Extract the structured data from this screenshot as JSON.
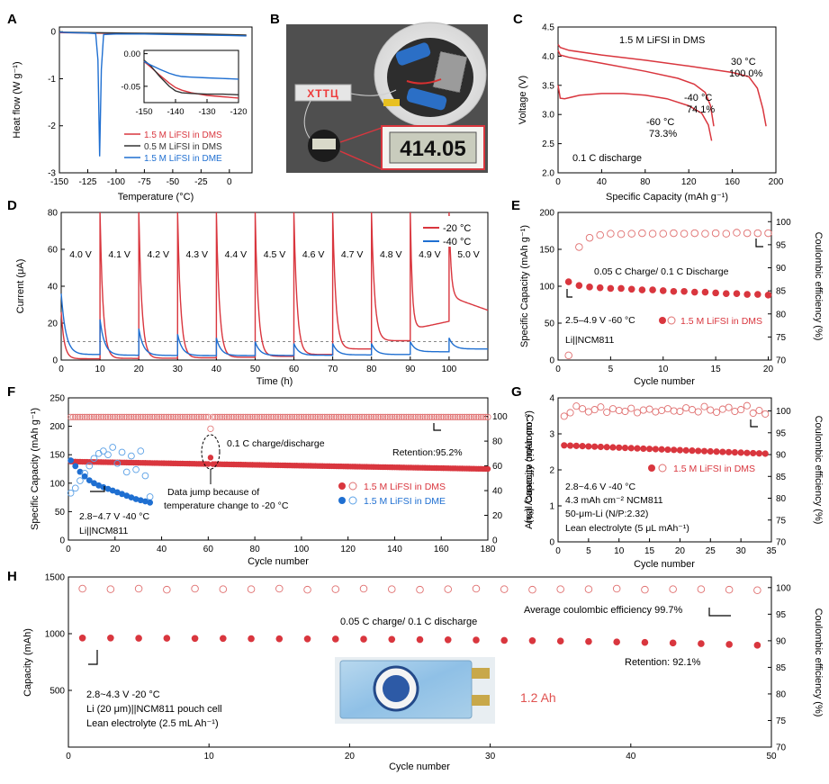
{
  "colors": {
    "red": "#d9363e",
    "blue": "#1f6fd1",
    "black": "#333333",
    "dark": "#1a1a1a",
    "pinkText": "#e0514f"
  },
  "panels": {
    "A": {
      "letter": "A",
      "chart_data": {
        "type": "line",
        "xlabel": "Temperature (°C)",
        "ylabel": "Heat flow (W g⁻¹)",
        "xlim": [
          -150,
          20
        ],
        "ylim": [
          -3,
          0.1
        ],
        "xticks": [
          -150,
          -125,
          -100,
          -75,
          -50,
          -25,
          0
        ],
        "yticks": [
          -3,
          -2,
          -1,
          0
        ],
        "series": [
          {
            "name": "1.5 M LiFSI in DMS",
            "color": "#d9363e",
            "x": [
              -150,
              -120,
              -90,
              -60,
              -30,
              0,
              15
            ],
            "y": [
              -0.02,
              -0.03,
              -0.035,
              -0.04,
              -0.05,
              -0.07,
              -0.08
            ]
          },
          {
            "name": "0.5 M LiFSI in DMS",
            "color": "#333333",
            "x": [
              -150,
              -120,
              -90,
              -60,
              -30,
              0,
              15
            ],
            "y": [
              -0.01,
              -0.02,
              -0.03,
              -0.035,
              -0.045,
              -0.06,
              -0.07
            ]
          },
          {
            "name": "1.5 M LiFSI in DME",
            "color": "#1f6fd1",
            "x": [
              -150,
              -140,
              -125,
              -118,
              -116,
              -114.5,
              -113,
              -111,
              -100,
              -75,
              -50,
              -25,
              0,
              15
            ],
            "y": [
              -0.01,
              -0.02,
              -0.03,
              -0.04,
              -0.6,
              -2.65,
              -0.8,
              -0.06,
              -0.05,
              -0.05,
              -0.06,
              -0.07,
              -0.08,
              -0.09
            ]
          }
        ],
        "inset": {
          "xlim": [
            -150,
            -120
          ],
          "ylim": [
            -0.075,
            0.005
          ],
          "xticks": [
            -150,
            -140,
            -130,
            -120
          ],
          "yticks": [
            0.0,
            -0.05
          ],
          "yticklabels": [
            "0.00",
            "-0.05"
          ],
          "series": [
            {
              "color": "#d9363e",
              "x": [
                -150,
                -148,
                -145,
                -142,
                -140,
                -138,
                -135,
                -130,
                -125,
                -120
              ],
              "y": [
                -0.012,
                -0.02,
                -0.033,
                -0.045,
                -0.052,
                -0.056,
                -0.06,
                -0.064,
                -0.066,
                -0.068
              ]
            },
            {
              "color": "#333333",
              "x": [
                -150,
                -148,
                -145,
                -142,
                -140,
                -138,
                -135,
                -130,
                -125,
                -120
              ],
              "y": [
                -0.01,
                -0.018,
                -0.035,
                -0.05,
                -0.057,
                -0.06,
                -0.061,
                -0.062,
                -0.062,
                -0.063
              ]
            },
            {
              "color": "#1f6fd1",
              "x": [
                -150,
                -148,
                -145,
                -142,
                -140,
                -138,
                -135,
                -130,
                -125,
                -120
              ],
              "y": [
                -0.012,
                -0.017,
                -0.024,
                -0.03,
                -0.033,
                -0.035,
                -0.036,
                -0.037,
                -0.038,
                -0.039
              ]
            }
          ]
        }
      }
    },
    "B": {
      "letter": "B",
      "display_text": "414.05",
      "led_text": "ХТТЦ"
    },
    "C": {
      "letter": "C",
      "chart_data": {
        "type": "line",
        "title": "1.5 M LiFSI in DMS",
        "xlabel": "Specific Capacity (mAh g⁻¹)",
        "ylabel": "Voltage (V)",
        "xlim": [
          0,
          200
        ],
        "ylim": [
          2.0,
          4.5
        ],
        "xticks": [
          0,
          40,
          80,
          120,
          160,
          200
        ],
        "yticks": [
          2.0,
          2.5,
          3.0,
          3.5,
          4.0,
          4.5
        ],
        "yticklabels": [
          "2.0",
          "2.5",
          "3.0",
          "3.5",
          "4.0",
          "4.5"
        ],
        "note": "0.1 C discharge",
        "series": [
          {
            "name": "30 °C",
            "label2": "100.0%",
            "color": "#d9363e",
            "x": [
              0,
              2,
              10,
              40,
              80,
              120,
              160,
              175,
              183,
              188,
              191
            ],
            "y": [
              4.2,
              4.15,
              4.1,
              4.02,
              3.93,
              3.83,
              3.72,
              3.65,
              3.45,
              3.1,
              2.8
            ]
          },
          {
            "name": "-40 °C",
            "label2": "74.1%",
            "color": "#d9363e",
            "x": [
              0,
              2,
              10,
              40,
              80,
              110,
              125,
              135,
              140,
              143
            ],
            "y": [
              4.1,
              4.02,
              3.98,
              3.88,
              3.74,
              3.62,
              3.52,
              3.38,
              3.15,
              2.8
            ]
          },
          {
            "name": "-60 °C",
            "label2": "73.3%",
            "color": "#d9363e",
            "x": [
              0,
              2,
              6,
              20,
              40,
              60,
              80,
              100,
              120,
              132,
              138,
              141
            ],
            "y": [
              3.5,
              3.28,
              3.27,
              3.33,
              3.36,
              3.36,
              3.33,
              3.27,
              3.15,
              3.02,
              2.82,
              2.55
            ]
          }
        ]
      }
    },
    "D": {
      "letter": "D",
      "chart_data": {
        "type": "line",
        "xlabel": "Time (h)",
        "ylabel": "Current (μA)",
        "xlim": [
          0,
          110
        ],
        "ylim": [
          0,
          80
        ],
        "xticks": [
          0,
          10,
          20,
          30,
          40,
          50,
          60,
          70,
          80,
          90,
          100
        ],
        "yticks": [
          0,
          20,
          40,
          60,
          80
        ],
        "step_labels": [
          "4.0 V",
          "4.1 V",
          "4.2 V",
          "4.3 V",
          "4.4 V",
          "4.5 V",
          "4.6 V",
          "4.7 V",
          "4.8 V",
          "4.9 V",
          "5.0 V"
        ],
        "reference_line": 10,
        "series": [
          {
            "name": "-20 °C",
            "color": "#d9363e",
            "steps": [
              {
                "peak": 26,
                "tail": 0.7
              },
              {
                "peak": 80,
                "tail": 0.9
              },
              {
                "peak": 80,
                "tail": 1.0
              },
              {
                "peak": 80,
                "tail": 1.2
              },
              {
                "peak": 80,
                "tail": 1.5
              },
              {
                "peak": 80,
                "tail": 2.0
              },
              {
                "peak": 80,
                "tail": 3.0
              },
              {
                "peak": 80,
                "tail": 6.0
              },
              {
                "peak": 80,
                "tail": 10.5
              },
              {
                "peak": 80,
                "tail": 21.0,
                "min": 16.5
              },
              {
                "peak": 80,
                "tail": 27.0,
                "min": 34.5
              }
            ]
          },
          {
            "name": "-40 °C",
            "color": "#1f6fd1",
            "steps": [
              {
                "peak": 36,
                "tail": 3.0
              },
              {
                "peak": 22,
                "tail": 2.6
              },
              {
                "peak": 17,
                "tail": 2.5
              },
              {
                "peak": 14,
                "tail": 2.4
              },
              {
                "peak": 12,
                "tail": 2.4
              },
              {
                "peak": 10,
                "tail": 2.5
              },
              {
                "peak": 9,
                "tail": 2.6
              },
              {
                "peak": 9,
                "tail": 2.8
              },
              {
                "peak": 9,
                "tail": 3.0
              },
              {
                "peak": 10,
                "tail": 4.5
              },
              {
                "peak": 12,
                "tail": 6.0
              }
            ]
          }
        ]
      }
    },
    "E": {
      "letter": "E",
      "chart_data": {
        "type": "scatter",
        "xlabel": "Cycle number",
        "ylabel": "Specific Capacity (mAh g⁻¹)",
        "y2label": "Coulombic efficiency (%)",
        "xlim": [
          0,
          20.3
        ],
        "ylim": [
          0,
          200
        ],
        "y2lim": [
          70,
          102
        ],
        "xticks": [
          0,
          5,
          10,
          15,
          20
        ],
        "yticks": [
          0,
          50,
          100,
          150,
          200
        ],
        "y2ticks": [
          70,
          75,
          80,
          85,
          90,
          95,
          100
        ],
        "legend": "1.5 M LiFSI in DMS",
        "notes": [
          "0.05 C Charge/ 0.1 C Discharge",
          "2.5–4.9 V -60 °C",
          "Li||NCM811"
        ],
        "x": [
          1,
          2,
          3,
          4,
          5,
          6,
          7,
          8,
          9,
          10,
          11,
          12,
          13,
          14,
          15,
          16,
          17,
          18,
          19,
          20
        ],
        "capacity": [
          106,
          101,
          99,
          98,
          97,
          97,
          96,
          95,
          95,
          94,
          93,
          93,
          92,
          92,
          91,
          90,
          90,
          89,
          89,
          88
        ],
        "ce": [
          71,
          94.5,
          96.5,
          97.1,
          97.4,
          97.3,
          97.4,
          97.5,
          97.4,
          97.4,
          97.5,
          97.4,
          97.5,
          97.4,
          97.5,
          97.4,
          97.6,
          97.5,
          97.5,
          97.5
        ]
      }
    },
    "F": {
      "letter": "F",
      "chart_data": {
        "type": "scatter",
        "xlabel": "Cycle number",
        "ylabel": "Specific Capacity (mAh g⁻¹)",
        "y2label": "Coulombic efficiency (%)",
        "xlim": [
          0,
          180
        ],
        "ylim": [
          0,
          250
        ],
        "y2lim": [
          0,
          115
        ],
        "xticks": [
          0,
          20,
          40,
          60,
          80,
          100,
          120,
          140,
          160,
          180
        ],
        "yticks": [
          0,
          50,
          100,
          150,
          200,
          250
        ],
        "y2ticks": [
          0,
          20,
          40,
          60,
          80,
          100
        ],
        "notes": [
          "0.1 C charge/discharge",
          "Retention:95.2%",
          "2.8~4.7 V    -40 °C",
          "Li||NCM811",
          "Data jump because of",
          "temperature change to -20 °C"
        ],
        "series": [
          {
            "name": "1.5 M LiFSI in DMS",
            "color": "#d9363e",
            "capacity_start": 138,
            "capacity_end": 125,
            "ce": 99.5,
            "jump_cycle": 61,
            "jump_cap": 145
          },
          {
            "name": "1.5 M LiFSI in DME",
            "color": "#1f6fd1",
            "x": [
              1,
              3,
              5,
              7,
              9,
              11,
              13,
              15,
              17,
              19,
              21,
              23,
              25,
              27,
              29,
              31,
              33,
              35
            ],
            "capacity": [
              140,
              130,
              120,
              112,
              105,
              100,
              96,
              93,
              90,
              87,
              84,
              81,
              78,
              75,
              72,
              70,
              68,
              66
            ],
            "ce": [
              38,
              42,
              48,
              54,
              60,
              66,
              70,
              72,
              69,
              75,
              62,
              71,
              55,
              68,
              57,
              72,
              52,
              35
            ]
          }
        ]
      }
    },
    "G": {
      "letter": "G",
      "chart_data": {
        "type": "scatter",
        "xlabel": "Cycle number",
        "ylabel": "Areal Capacity (mAh cm⁻²)",
        "y2label": "Coulombic efficiency (%)",
        "xlim": [
          0,
          35
        ],
        "ylim": [
          0,
          4
        ],
        "y2lim": [
          70,
          103
        ],
        "xticks": [
          0,
          5,
          10,
          15,
          20,
          25,
          30,
          35
        ],
        "yticks": [
          0,
          1,
          2,
          3,
          4
        ],
        "y2ticks": [
          70,
          75,
          80,
          85,
          90,
          95,
          100
        ],
        "legend": "1.5 M LiFSI in DMS",
        "notes": [
          "2.8~4.6 V    -40 °C",
          "4.3 mAh cm⁻² NCM811",
          "50-μm-Li (N/P:2.32)",
          "Lean electrolyte  (5 μL mAh⁻¹)"
        ],
        "capacity_start": 2.68,
        "capacity_end": 2.45,
        "ce": [
          98.8,
          99.6,
          101.1,
          100.5,
          99.8,
          100.3,
          100.9,
          99.7,
          100.5,
          100.1,
          99.9,
          100.6,
          99.6,
          100.2,
          100.4,
          99.8,
          100.1,
          100.5,
          100.0,
          99.9,
          100.7,
          100.3,
          99.8,
          101.0,
          100.2,
          99.7,
          100.4,
          100.8,
          99.9,
          100.3,
          101.2,
          99.5,
          100.1,
          99.3
        ]
      }
    },
    "H": {
      "letter": "H",
      "chart_data": {
        "type": "scatter",
        "xlabel": "Cycle number",
        "ylabel": "Capacity (mAh)",
        "y2label": "Coulombic efficiency (%)",
        "xlim": [
          0,
          50
        ],
        "ylim": [
          0,
          1500
        ],
        "y2lim": [
          70,
          102
        ],
        "xticks": [
          0,
          10,
          20,
          30,
          40,
          50
        ],
        "yticks": [
          500,
          1000,
          1500
        ],
        "y2ticks": [
          70,
          75,
          80,
          85,
          90,
          95,
          100
        ],
        "notes": [
          "0.05 C charge/ 0.1 C discharge",
          "Average coulombic efficiency 99.7%",
          "Retention: 92.1%",
          "2.8~4.3 V    -20 °C",
          "Li (20 μm)||NCM811  pouch cell",
          "Lean electrolyte (2.5 mL Ah⁻¹)",
          "1.2 Ah"
        ],
        "x": [
          1,
          3,
          5,
          7,
          9,
          11,
          13,
          15,
          17,
          19,
          21,
          23,
          25,
          27,
          29,
          31,
          33,
          35,
          37,
          39,
          41,
          43,
          45,
          47,
          49
        ],
        "capacity": [
          962,
          962,
          960,
          960,
          958,
          958,
          956,
          955,
          954,
          953,
          952,
          950,
          948,
          946,
          944,
          941,
          938,
          935,
          931,
          927,
          923,
          918,
          912,
          905,
          898
        ],
        "ce": [
          99.8,
          99.7,
          99.8,
          99.6,
          99.8,
          99.7,
          99.7,
          99.8,
          99.6,
          99.7,
          99.8,
          99.7,
          99.6,
          99.7,
          99.8,
          99.7,
          99.6,
          99.7,
          99.7,
          99.8,
          99.6,
          99.7,
          99.7,
          99.6,
          99.5
        ]
      }
    }
  }
}
